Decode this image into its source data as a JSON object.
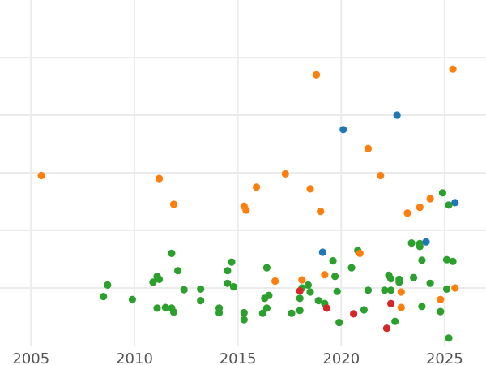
{
  "chart_data": {
    "type": "scatter",
    "title": "",
    "xlabel": "",
    "ylabel": "",
    "xlim": [
      2003.5,
      2027
    ],
    "ylim": [
      0,
      6
    ],
    "grid": true,
    "x_ticks": [
      2005,
      2010,
      2015,
      2020,
      2025
    ],
    "x_tick_labels": [
      "2005",
      "2010",
      "2015",
      "2020",
      "2025"
    ],
    "y_gridlines": [
      1,
      2,
      3,
      4,
      5
    ],
    "colors": {
      "green": "#2ca02c",
      "orange": "#ff7f0e",
      "blue": "#1f77b4",
      "red": "#d62728"
    },
    "series": [
      {
        "color": "green",
        "points": [
          [
            2008.5,
            0.85
          ],
          [
            2008.7,
            1.05
          ],
          [
            2009.9,
            0.8
          ],
          [
            2010.9,
            1.1
          ],
          [
            2011.1,
            1.2
          ],
          [
            2011.2,
            1.15
          ],
          [
            2011.1,
            0.65
          ],
          [
            2011.5,
            0.66
          ],
          [
            2011.8,
            0.65
          ],
          [
            2011.9,
            0.58
          ],
          [
            2011.8,
            1.6
          ],
          [
            2012.1,
            1.3
          ],
          [
            2012.4,
            0.97
          ],
          [
            2013.2,
            0.98
          ],
          [
            2013.2,
            0.78
          ],
          [
            2014.1,
            0.65
          ],
          [
            2014.1,
            0.57
          ],
          [
            2014.5,
            1.3
          ],
          [
            2014.7,
            1.45
          ],
          [
            2014.5,
            1.08
          ],
          [
            2014.8,
            1.02
          ],
          [
            2015.3,
            0.57
          ],
          [
            2015.3,
            0.45
          ],
          [
            2016.2,
            0.56
          ],
          [
            2016.3,
            0.82
          ],
          [
            2016.4,
            0.65
          ],
          [
            2016.5,
            0.87
          ],
          [
            2016.4,
            1.35
          ],
          [
            2017.6,
            0.56
          ],
          [
            2018.0,
            0.82
          ],
          [
            2018.1,
            1.0
          ],
          [
            2018.0,
            0.61
          ],
          [
            2018.4,
            1.05
          ],
          [
            2018.5,
            0.93
          ],
          [
            2018.9,
            0.78
          ],
          [
            2019.2,
            0.73
          ],
          [
            2019.6,
            1.47
          ],
          [
            2019.7,
            1.2
          ],
          [
            2019.8,
            0.94
          ],
          [
            2019.9,
            0.4
          ],
          [
            2020.5,
            1.35
          ],
          [
            2020.8,
            1.65
          ],
          [
            2021.1,
            0.62
          ],
          [
            2021.3,
            0.96
          ],
          [
            2022.1,
            0.96
          ],
          [
            2022.3,
            1.22
          ],
          [
            2022.4,
            1.16
          ],
          [
            2022.4,
            0.96
          ],
          [
            2022.6,
            0.42
          ],
          [
            2022.8,
            1.15
          ],
          [
            2022.8,
            1.1
          ],
          [
            2023.4,
            1.78
          ],
          [
            2023.5,
            1.18
          ],
          [
            2023.8,
            1.77
          ],
          [
            2023.8,
            1.72
          ],
          [
            2023.9,
            1.48
          ],
          [
            2023.9,
            0.68
          ],
          [
            2024.3,
            1.08
          ],
          [
            2024.8,
            0.59
          ],
          [
            2024.9,
            2.65
          ],
          [
            2025.1,
            1.49
          ],
          [
            2025.1,
            0.98
          ],
          [
            2025.2,
            2.44
          ],
          [
            2025.4,
            1.46
          ],
          [
            2025.2,
            0.13
          ]
        ]
      },
      {
        "color": "orange",
        "points": [
          [
            2005.5,
            2.95
          ],
          [
            2011.2,
            2.9
          ],
          [
            2011.9,
            2.45
          ],
          [
            2015.3,
            2.42
          ],
          [
            2015.4,
            2.35
          ],
          [
            2015.9,
            2.75
          ],
          [
            2016.8,
            1.12
          ],
          [
            2017.3,
            2.98
          ],
          [
            2018.1,
            1.14
          ],
          [
            2018.5,
            2.72
          ],
          [
            2018.8,
            4.7
          ],
          [
            2019.0,
            2.33
          ],
          [
            2019.2,
            1.23
          ],
          [
            2020.9,
            1.6
          ],
          [
            2021.3,
            3.42
          ],
          [
            2021.9,
            2.95
          ],
          [
            2022.9,
            0.66
          ],
          [
            2022.9,
            0.93
          ],
          [
            2023.2,
            2.3
          ],
          [
            2023.8,
            2.4
          ],
          [
            2024.3,
            2.55
          ],
          [
            2024.8,
            0.8
          ],
          [
            2025.4,
            4.8
          ],
          [
            2025.5,
            1.0
          ]
        ]
      },
      {
        "color": "blue",
        "points": [
          [
            2019.1,
            1.62
          ],
          [
            2020.1,
            3.75
          ],
          [
            2022.7,
            4.0
          ],
          [
            2024.1,
            1.8
          ],
          [
            2025.5,
            2.48
          ]
        ]
      },
      {
        "color": "red",
        "points": [
          [
            2018.0,
            0.95
          ],
          [
            2019.3,
            0.65
          ],
          [
            2020.6,
            0.55
          ],
          [
            2022.2,
            0.3
          ],
          [
            2022.4,
            0.73
          ]
        ]
      }
    ]
  }
}
